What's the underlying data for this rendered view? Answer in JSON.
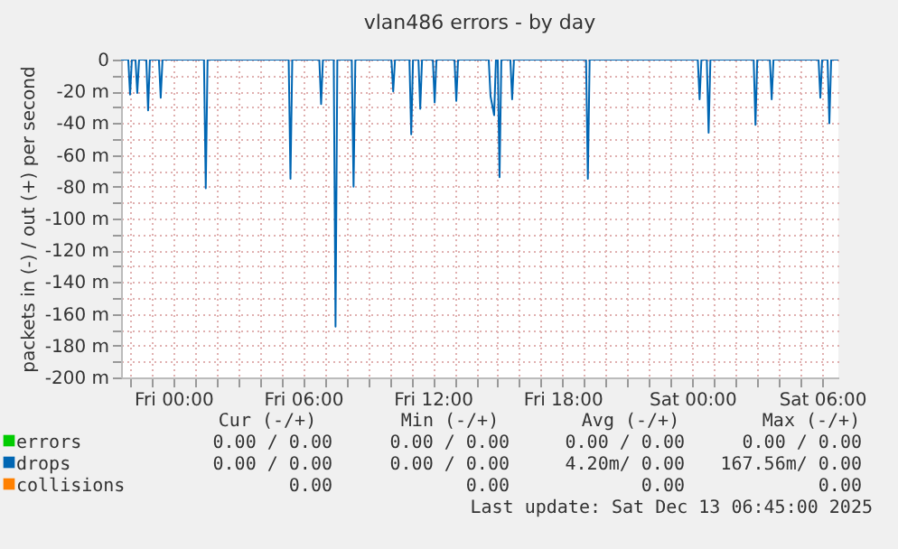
{
  "chart_data": {
    "type": "line",
    "title": "vlan486 errors - by day",
    "ylabel": "packets in (-) / out (+) per second",
    "xlim": [
      "2025-12-11T21:35",
      "2025-12-13T06:45"
    ],
    "xticks": [
      {
        "value": "2025-12-11T22:00",
        "label": null
      },
      {
        "value": "2025-12-11T23:00",
        "label": null
      },
      {
        "value": "2025-12-12T00:00",
        "label": "Fri 00:00"
      },
      {
        "value": "2025-12-12T01:00",
        "label": null
      },
      {
        "value": "2025-12-12T02:00",
        "label": null
      },
      {
        "value": "2025-12-12T03:00",
        "label": null
      },
      {
        "value": "2025-12-12T04:00",
        "label": null
      },
      {
        "value": "2025-12-12T05:00",
        "label": null
      },
      {
        "value": "2025-12-12T06:00",
        "label": "Fri 06:00"
      },
      {
        "value": "2025-12-12T07:00",
        "label": null
      },
      {
        "value": "2025-12-12T08:00",
        "label": null
      },
      {
        "value": "2025-12-12T09:00",
        "label": null
      },
      {
        "value": "2025-12-12T10:00",
        "label": null
      },
      {
        "value": "2025-12-12T11:00",
        "label": null
      },
      {
        "value": "2025-12-12T12:00",
        "label": "Fri 12:00"
      },
      {
        "value": "2025-12-12T13:00",
        "label": null
      },
      {
        "value": "2025-12-12T14:00",
        "label": null
      },
      {
        "value": "2025-12-12T15:00",
        "label": null
      },
      {
        "value": "2025-12-12T16:00",
        "label": null
      },
      {
        "value": "2025-12-12T17:00",
        "label": null
      },
      {
        "value": "2025-12-12T18:00",
        "label": "Fri 18:00"
      },
      {
        "value": "2025-12-12T19:00",
        "label": null
      },
      {
        "value": "2025-12-12T20:00",
        "label": null
      },
      {
        "value": "2025-12-12T21:00",
        "label": null
      },
      {
        "value": "2025-12-12T22:00",
        "label": null
      },
      {
        "value": "2025-12-12T23:00",
        "label": null
      },
      {
        "value": "2025-12-13T00:00",
        "label": "Sat 00:00"
      },
      {
        "value": "2025-12-13T01:00",
        "label": null
      },
      {
        "value": "2025-12-13T02:00",
        "label": null
      },
      {
        "value": "2025-12-13T03:00",
        "label": null
      },
      {
        "value": "2025-12-13T04:00",
        "label": null
      },
      {
        "value": "2025-12-13T05:00",
        "label": null
      },
      {
        "value": "2025-12-13T06:00",
        "label": "Sat 06:00"
      }
    ],
    "ylim": [
      -200,
      0
    ],
    "yticks": [
      {
        "value": -200,
        "label": "-200 m"
      },
      {
        "value": -190,
        "label": null
      },
      {
        "value": -180,
        "label": "-180 m"
      },
      {
        "value": -170,
        "label": null
      },
      {
        "value": -160,
        "label": "-160 m"
      },
      {
        "value": -150,
        "label": null
      },
      {
        "value": -140,
        "label": "-140 m"
      },
      {
        "value": -130,
        "label": null
      },
      {
        "value": -120,
        "label": "-120 m"
      },
      {
        "value": -110,
        "label": null
      },
      {
        "value": -100,
        "label": "-100 m"
      },
      {
        "value": -90,
        "label": null
      },
      {
        "value": -80,
        "label": "-80 m"
      },
      {
        "value": -70,
        "label": null
      },
      {
        "value": -60,
        "label": "-60 m"
      },
      {
        "value": -50,
        "label": null
      },
      {
        "value": -40,
        "label": "-40 m"
      },
      {
        "value": -30,
        "label": null
      },
      {
        "value": -20,
        "label": "-20 m"
      },
      {
        "value": -10,
        "label": null
      },
      {
        "value": 0,
        "label": "0"
      }
    ],
    "grid": true,
    "legend": "bottom",
    "marker": "none",
    "line_style": "solid",
    "series": [
      {
        "name": "errors",
        "color": "#00cc00"
      },
      {
        "name": "drops",
        "color": "#0066b3",
        "x": [
          "2025-12-11T21:35",
          "2025-12-11T21:55",
          "2025-12-11T22:00",
          "2025-12-11T22:05",
          "2025-12-11T22:15",
          "2025-12-11T22:20",
          "2025-12-11T22:25",
          "2025-12-11T22:45",
          "2025-12-11T22:50",
          "2025-12-11T22:55",
          "2025-12-11T23:20",
          "2025-12-11T23:25",
          "2025-12-11T23:30",
          "2025-12-12T01:25",
          "2025-12-12T01:30",
          "2025-12-12T01:35",
          "2025-12-12T05:20",
          "2025-12-12T05:25",
          "2025-12-12T05:30",
          "2025-12-12T06:45",
          "2025-12-12T06:50",
          "2025-12-12T06:55",
          "2025-12-12T07:25",
          "2025-12-12T07:30",
          "2025-12-12T07:35",
          "2025-12-12T08:15",
          "2025-12-12T08:20",
          "2025-12-12T08:25",
          "2025-12-12T10:05",
          "2025-12-12T10:10",
          "2025-12-12T10:15",
          "2025-12-12T10:55",
          "2025-12-12T11:00",
          "2025-12-12T11:05",
          "2025-12-12T11:20",
          "2025-12-12T11:25",
          "2025-12-12T11:30",
          "2025-12-12T12:00",
          "2025-12-12T12:05",
          "2025-12-12T12:10",
          "2025-12-12T13:00",
          "2025-12-12T13:05",
          "2025-12-12T13:10",
          "2025-12-12T14:35",
          "2025-12-12T14:40",
          "2025-12-12T14:50",
          "2025-12-12T14:55",
          "2025-12-12T15:00",
          "2025-12-12T15:05",
          "2025-12-12T15:10",
          "2025-12-12T15:35",
          "2025-12-12T15:40",
          "2025-12-12T15:45",
          "2025-12-12T19:05",
          "2025-12-12T19:10",
          "2025-12-12T19:15",
          "2025-12-13T00:15",
          "2025-12-13T00:20",
          "2025-12-13T00:25",
          "2025-12-13T00:40",
          "2025-12-13T00:45",
          "2025-12-13T00:50",
          "2025-12-13T02:50",
          "2025-12-13T02:55",
          "2025-12-13T03:00",
          "2025-12-13T03:35",
          "2025-12-13T03:40",
          "2025-12-13T03:45",
          "2025-12-13T05:50",
          "2025-12-13T05:55",
          "2025-12-13T06:00",
          "2025-12-13T06:15",
          "2025-12-13T06:20",
          "2025-12-13T06:25",
          "2025-12-13T06:45"
        ],
        "values": [
          0,
          0,
          -22,
          0,
          0,
          -21,
          0,
          0,
          -32,
          0,
          0,
          -24,
          0,
          0,
          -81,
          0,
          0,
          -75,
          0,
          0,
          -28,
          0,
          0,
          -168,
          0,
          0,
          -80,
          0,
          0,
          -20,
          0,
          0,
          -47,
          0,
          0,
          -31,
          0,
          0,
          -27,
          0,
          0,
          -26,
          0,
          0,
          -23,
          -35,
          0,
          0,
          -74,
          0,
          0,
          -25,
          0,
          0,
          -75,
          0,
          0,
          -25,
          0,
          0,
          -46,
          0,
          0,
          -41,
          0,
          0,
          -25,
          0,
          0,
          -24,
          0,
          0,
          -40,
          0,
          0
        ]
      },
      {
        "name": "collisions",
        "color": "#ff8000"
      }
    ],
    "annotations": [
      "Cur (-/+)",
      "Min (-/+)",
      "Avg (-/+)",
      "Max (-/+)",
      "0.00 /  0.00",
      "0.00 /  0.00",
      "0.00 /  0.00",
      "0.00 /  0.00",
      "0.00 /  0.00",
      "0.00 /  0.00",
      "4.20m/  0.00",
      "167.56m/  0.00",
      "0.00",
      "0.00",
      "0.00",
      "0.00",
      "Last update:  Sat Dec 13 06:45:00 2025"
    ]
  }
}
